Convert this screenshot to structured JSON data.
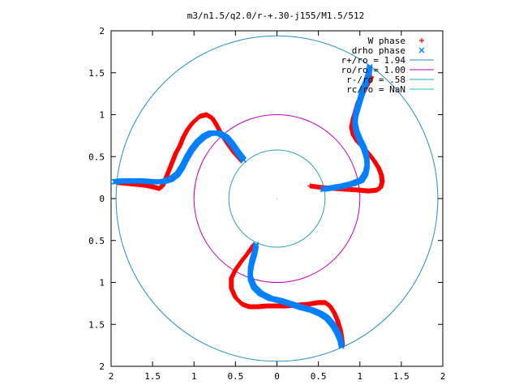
{
  "chart_data": {
    "type": "scatter",
    "title": "m3/n1.5/q2.0/r-+.30-j155/M1.5/512",
    "xlabel": "",
    "ylabel": "",
    "xlim": [
      -2,
      2
    ],
    "ylim": [
      -2,
      2
    ],
    "x_ticks": [
      "2",
      "1.5",
      "1",
      "0.5",
      "0",
      "0.5",
      "1",
      "1.5",
      "2"
    ],
    "y_ticks": [
      "2",
      "1.5",
      "1",
      "0.5",
      "0",
      "0.5",
      "1",
      "1.5",
      "2"
    ],
    "x_tick_values": [
      -2,
      -1.5,
      -1,
      -0.5,
      0,
      0.5,
      1,
      1.5,
      2
    ],
    "y_tick_values": [
      2,
      1.5,
      1,
      0.5,
      0,
      -0.5,
      -1,
      -1.5,
      -2
    ],
    "grid": false,
    "legend_position": "top-right",
    "legend": [
      {
        "label": "W phase",
        "marker": "+",
        "color": "#ff0000"
      },
      {
        "label": "drho phase",
        "marker": "x",
        "color": "#0080ff"
      },
      {
        "label": "r+/ro = 1.94",
        "marker": "line",
        "color": "#1f8fc0"
      },
      {
        "label": "ro/ro = 1.00",
        "marker": "line",
        "color": "#c000c0"
      },
      {
        "label": "r-/ro = .58",
        "marker": "line",
        "color": "#2aa0b0"
      },
      {
        "label": "rc/ro = NaN",
        "marker": "line",
        "color": "#20c0d0"
      }
    ],
    "circles": [
      {
        "name": "r+/ro",
        "r": 1.94,
        "color": "#1f8fc0"
      },
      {
        "name": "ro/ro",
        "r": 1.0,
        "color": "#c000c0"
      },
      {
        "name": "r-/ro",
        "r": 0.58,
        "color": "#2aa0b0"
      }
    ],
    "series": [
      {
        "name": "W phase",
        "color": "#ff0000",
        "arms": [
          [
            [
              0.4,
              0.15
            ],
            [
              0.55,
              0.13
            ],
            [
              0.7,
              0.12
            ],
            [
              0.85,
              0.11
            ],
            [
              1.0,
              0.1
            ],
            [
              1.1,
              0.09
            ],
            [
              1.2,
              0.1
            ],
            [
              1.25,
              0.13
            ],
            [
              1.27,
              0.2
            ],
            [
              1.26,
              0.28
            ],
            [
              1.23,
              0.36
            ],
            [
              1.18,
              0.44
            ],
            [
              1.12,
              0.52
            ],
            [
              1.05,
              0.6
            ],
            [
              0.97,
              0.68
            ],
            [
              0.92,
              0.76
            ],
            [
              0.9,
              0.85
            ],
            [
              0.92,
              0.95
            ],
            [
              0.95,
              1.05
            ],
            [
              0.98,
              1.15
            ],
            [
              1.02,
              1.22
            ],
            [
              1.06,
              1.3
            ],
            [
              1.1,
              1.38
            ],
            [
              1.14,
              1.45
            ]
          ],
          [
            [
              -0.28,
              -0.55
            ],
            [
              -0.35,
              -0.65
            ],
            [
              -0.43,
              -0.75
            ],
            [
              -0.5,
              -0.85
            ],
            [
              -0.55,
              -0.95
            ],
            [
              -0.55,
              -1.07
            ],
            [
              -0.5,
              -1.18
            ],
            [
              -0.42,
              -1.26
            ],
            [
              -0.33,
              -1.29
            ],
            [
              -0.23,
              -1.29
            ],
            [
              -0.12,
              -1.28
            ],
            [
              0.0,
              -1.28
            ],
            [
              0.12,
              -1.28
            ],
            [
              0.25,
              -1.27
            ],
            [
              0.38,
              -1.26
            ],
            [
              0.5,
              -1.24
            ],
            [
              0.58,
              -1.24
            ],
            [
              0.64,
              -1.28
            ],
            [
              0.69,
              -1.36
            ],
            [
              0.73,
              -1.45
            ],
            [
              0.76,
              -1.55
            ],
            [
              0.78,
              -1.65
            ],
            [
              0.79,
              -1.75
            ]
          ],
          [
            [
              -0.43,
              0.45
            ],
            [
              -0.52,
              0.55
            ],
            [
              -0.6,
              0.66
            ],
            [
              -0.67,
              0.77
            ],
            [
              -0.73,
              0.88
            ],
            [
              -0.78,
              0.96
            ],
            [
              -0.85,
              1.0
            ],
            [
              -0.93,
              0.98
            ],
            [
              -1.02,
              0.9
            ],
            [
              -1.08,
              0.82
            ],
            [
              -1.13,
              0.73
            ],
            [
              -1.17,
              0.63
            ],
            [
              -1.22,
              0.54
            ],
            [
              -1.26,
              0.44
            ],
            [
              -1.3,
              0.34
            ],
            [
              -1.34,
              0.24
            ],
            [
              -1.38,
              0.15
            ],
            [
              -1.42,
              0.12
            ],
            [
              -1.5,
              0.14
            ],
            [
              -1.6,
              0.16
            ],
            [
              -1.7,
              0.17
            ],
            [
              -1.8,
              0.18
            ],
            [
              -1.92,
              0.19
            ]
          ]
        ]
      },
      {
        "name": "drho phase",
        "color": "#0080ff",
        "arms": [
          [
            [
              0.55,
              0.11
            ],
            [
              0.68,
              0.13
            ],
            [
              0.8,
              0.15
            ],
            [
              0.92,
              0.18
            ],
            [
              1.02,
              0.22
            ],
            [
              1.07,
              0.3
            ],
            [
              1.09,
              0.4
            ],
            [
              1.08,
              0.5
            ],
            [
              1.05,
              0.6
            ],
            [
              1.0,
              0.7
            ],
            [
              0.96,
              0.8
            ],
            [
              0.94,
              0.9
            ],
            [
              0.95,
              1.0
            ],
            [
              0.98,
              1.1
            ],
            [
              1.01,
              1.2
            ],
            [
              1.04,
              1.3
            ],
            [
              1.08,
              1.4
            ],
            [
              1.11,
              1.5
            ],
            [
              1.12,
              1.57
            ]
          ],
          [
            [
              -0.25,
              -0.55
            ],
            [
              -0.27,
              -0.65
            ],
            [
              -0.3,
              -0.75
            ],
            [
              -0.32,
              -0.85
            ],
            [
              -0.32,
              -0.95
            ],
            [
              -0.28,
              -1.05
            ],
            [
              -0.2,
              -1.13
            ],
            [
              -0.08,
              -1.19
            ],
            [
              0.05,
              -1.22
            ],
            [
              0.18,
              -1.26
            ],
            [
              0.3,
              -1.3
            ],
            [
              0.42,
              -1.33
            ],
            [
              0.52,
              -1.37
            ],
            [
              0.6,
              -1.42
            ],
            [
              0.67,
              -1.5
            ],
            [
              0.72,
              -1.58
            ],
            [
              0.76,
              -1.67
            ],
            [
              0.78,
              -1.76
            ]
          ],
          [
            [
              -0.4,
              0.46
            ],
            [
              -0.47,
              0.55
            ],
            [
              -0.54,
              0.65
            ],
            [
              -0.61,
              0.73
            ],
            [
              -0.7,
              0.78
            ],
            [
              -0.8,
              0.78
            ],
            [
              -0.88,
              0.74
            ],
            [
              -0.96,
              0.67
            ],
            [
              -1.03,
              0.58
            ],
            [
              -1.09,
              0.48
            ],
            [
              -1.14,
              0.38
            ],
            [
              -1.2,
              0.29
            ],
            [
              -1.28,
              0.23
            ],
            [
              -1.38,
              0.2
            ],
            [
              -1.5,
              0.2
            ],
            [
              -1.62,
              0.21
            ],
            [
              -1.74,
              0.21
            ],
            [
              -1.86,
              0.21
            ],
            [
              -1.96,
              0.2
            ]
          ]
        ]
      }
    ]
  }
}
